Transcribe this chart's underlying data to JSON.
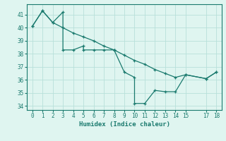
{
  "line1_x": [
    0,
    1,
    2,
    3,
    3,
    4,
    5,
    5,
    6,
    7,
    8,
    8,
    9,
    10,
    10,
    11,
    12,
    13,
    14,
    15,
    17,
    18
  ],
  "line1_y": [
    40.1,
    41.3,
    40.4,
    41.2,
    38.3,
    38.3,
    38.6,
    38.3,
    38.3,
    38.3,
    38.3,
    38.3,
    36.6,
    36.2,
    34.2,
    34.2,
    35.2,
    35.1,
    35.1,
    36.4,
    36.1,
    36.6
  ],
  "line2_x": [
    0,
    1,
    2,
    3,
    4,
    5,
    6,
    7,
    8,
    9,
    10,
    11,
    12,
    13,
    14,
    15,
    17,
    18
  ],
  "line2_y": [
    40.1,
    41.3,
    40.4,
    40.0,
    39.6,
    39.3,
    39.0,
    38.6,
    38.3,
    37.9,
    37.5,
    37.2,
    36.8,
    36.5,
    36.2,
    36.4,
    36.1,
    36.6
  ],
  "color": "#1a7a6e",
  "bg_color": "#dff5f0",
  "grid_color": "#b8e0da",
  "xlabel": "Humidex (Indice chaleur)",
  "xlim": [
    -0.5,
    18.5
  ],
  "ylim": [
    33.7,
    41.8
  ],
  "yticks": [
    34,
    35,
    36,
    37,
    38,
    39,
    40,
    41
  ],
  "xticks": [
    0,
    1,
    2,
    3,
    4,
    5,
    6,
    7,
    8,
    9,
    10,
    11,
    12,
    13,
    14,
    15,
    17,
    18
  ]
}
